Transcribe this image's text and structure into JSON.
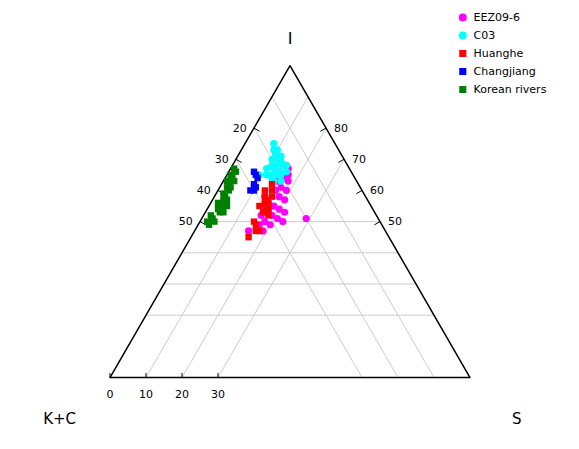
{
  "chart_data": {
    "type": "ternary",
    "axes": [
      {
        "label": "S",
        "ticks": [
          0,
          10,
          20,
          30
        ],
        "grid_lines": [
          10,
          20,
          30
        ]
      },
      {
        "label": "I",
        "ticks": [
          80,
          70,
          60,
          50
        ],
        "grid_lines": [
          20,
          30,
          40,
          50
        ]
      },
      {
        "label": "K+C",
        "ticks": [
          20,
          30,
          40,
          50
        ],
        "grid_lines": [
          10,
          20,
          30
        ]
      }
    ],
    "grid": true,
    "legend": "upper right",
    "series": [
      {
        "name": "EEZ09-6",
        "color": "#FF00FF",
        "marker": "circle",
        "values": [
          [
            10,
            72,
            18
          ],
          [
            12,
            70,
            18
          ],
          [
            13,
            69,
            18
          ],
          [
            15,
            68,
            17
          ],
          [
            16,
            67,
            17
          ],
          [
            17,
            65,
            18
          ],
          [
            14,
            66,
            20
          ],
          [
            16,
            64,
            20
          ],
          [
            18,
            63,
            19
          ],
          [
            15,
            63,
            22
          ],
          [
            17,
            61,
            22
          ],
          [
            19,
            60,
            21
          ],
          [
            16,
            60,
            24
          ],
          [
            18,
            58,
            24
          ],
          [
            20,
            57,
            23
          ],
          [
            14,
            58,
            28
          ],
          [
            16,
            56,
            28
          ],
          [
            18,
            55,
            27
          ],
          [
            20,
            54,
            26
          ],
          [
            22,
            53,
            25
          ],
          [
            15,
            55,
            30
          ],
          [
            17,
            53,
            30
          ],
          [
            19,
            52,
            29
          ],
          [
            21,
            51,
            28
          ],
          [
            23,
            50,
            27
          ],
          [
            16,
            52,
            32
          ],
          [
            18,
            50,
            32
          ],
          [
            20,
            49,
            31
          ],
          [
            17,
            49,
            34
          ],
          [
            19,
            47,
            34
          ],
          [
            15,
            47,
            38
          ],
          [
            29,
            51,
            20
          ]
        ]
      },
      {
        "name": "C03",
        "color": "#00FFFF",
        "marker": "circle",
        "values": [
          [
            8,
            75,
            17
          ],
          [
            10,
            73,
            17
          ],
          [
            12,
            71,
            17
          ],
          [
            9,
            73,
            18
          ],
          [
            11,
            71,
            18
          ],
          [
            13,
            69,
            18
          ],
          [
            10,
            72,
            18
          ],
          [
            12,
            70,
            18
          ],
          [
            14,
            68,
            18
          ],
          [
            11,
            71,
            18
          ],
          [
            13,
            69,
            18
          ],
          [
            15,
            68,
            17
          ],
          [
            12,
            70,
            18
          ],
          [
            14,
            68,
            18
          ],
          [
            16,
            66,
            18
          ],
          [
            10,
            70,
            20
          ],
          [
            12,
            68,
            20
          ],
          [
            14,
            66,
            20
          ],
          [
            11,
            68,
            21
          ],
          [
            13,
            66,
            21
          ],
          [
            15,
            65,
            20
          ],
          [
            12,
            67,
            21
          ],
          [
            14,
            65,
            21
          ],
          [
            16,
            63,
            21
          ],
          [
            10,
            67,
            23
          ],
          [
            12,
            65,
            23
          ],
          [
            14,
            63,
            23
          ],
          [
            11,
            65,
            24
          ],
          [
            13,
            64,
            23
          ],
          [
            15,
            60,
            25
          ],
          [
            9,
            65,
            26
          ]
        ]
      },
      {
        "name": "Huanghe",
        "color": "#FF0000",
        "marker": "square",
        "values": [
          [
            14,
            62,
            24
          ],
          [
            15,
            60,
            25
          ],
          [
            16,
            58,
            26
          ],
          [
            13,
            60,
            27
          ],
          [
            14,
            58,
            28
          ],
          [
            15,
            56,
            29
          ],
          [
            15,
            57,
            28
          ],
          [
            16,
            55,
            29
          ],
          [
            17,
            54,
            29
          ],
          [
            16,
            56,
            28
          ],
          [
            17,
            54,
            29
          ],
          [
            18,
            52,
            30
          ],
          [
            14,
            55,
            31
          ],
          [
            16,
            53,
            31
          ],
          [
            15,
            50,
            35
          ],
          [
            16,
            49,
            35
          ],
          [
            17,
            47,
            36
          ],
          [
            18,
            47,
            35
          ],
          [
            16,
            45,
            39
          ]
        ]
      },
      {
        "name": "Changjiang",
        "color": "#0000FF",
        "marker": "square",
        "values": [
          [
            7,
            66,
            27
          ],
          [
            8,
            65,
            27
          ],
          [
            9,
            64,
            27
          ],
          [
            9,
            62,
            29
          ],
          [
            10,
            61,
            29
          ],
          [
            9,
            60,
            31
          ],
          [
            10,
            60,
            30
          ]
        ]
      },
      {
        "name": "Korean rivers",
        "color": "#008000",
        "marker": "square",
        "values": [
          [
            1,
            67,
            32
          ],
          [
            2,
            66,
            32
          ],
          [
            1,
            65,
            34
          ],
          [
            2,
            64,
            34
          ],
          [
            3,
            63,
            34
          ],
          [
            1,
            63,
            36
          ],
          [
            2,
            62,
            36
          ],
          [
            3,
            61,
            36
          ],
          [
            2,
            61,
            37
          ],
          [
            3,
            60,
            37
          ],
          [
            2,
            59,
            39
          ],
          [
            3,
            58,
            39
          ],
          [
            4,
            57,
            39
          ],
          [
            3,
            57,
            40
          ],
          [
            4,
            56,
            40
          ],
          [
            5,
            55,
            40
          ],
          [
            2,
            56,
            42
          ],
          [
            3,
            55,
            42
          ],
          [
            4,
            54,
            42
          ],
          [
            5,
            53,
            42
          ],
          [
            3,
            54,
            43
          ],
          [
            4,
            53,
            43
          ],
          [
            2,
            52,
            46
          ],
          [
            3,
            51,
            46
          ],
          [
            4,
            50,
            46
          ],
          [
            2,
            50,
            48
          ],
          [
            3,
            49,
            48
          ]
        ]
      }
    ]
  }
}
